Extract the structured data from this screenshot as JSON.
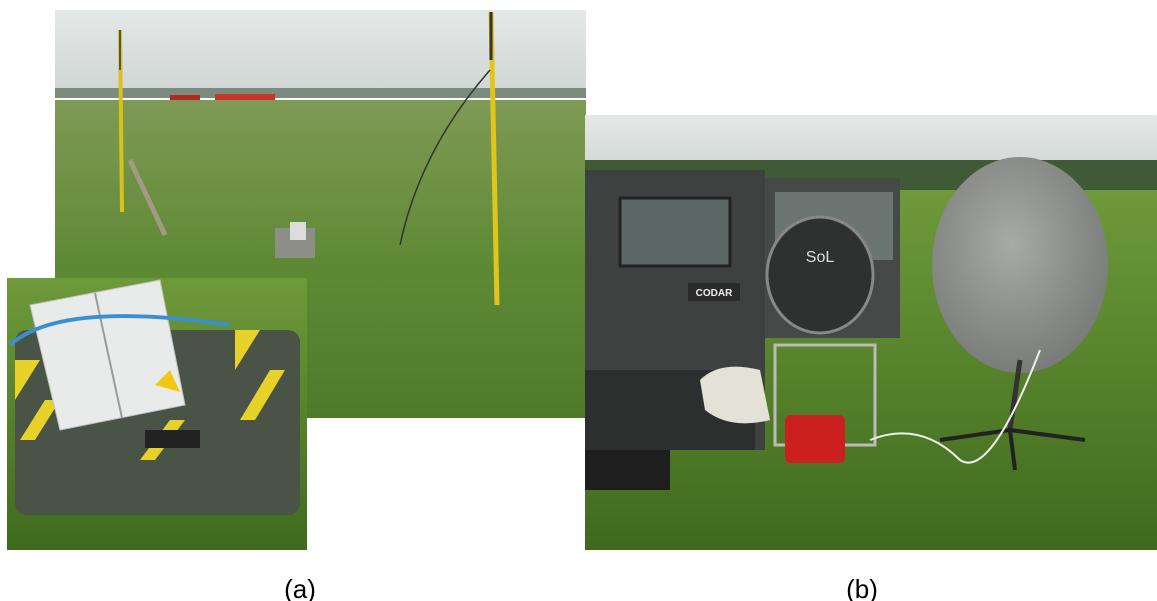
{
  "figure": {
    "panels": [
      {
        "label": "(a)"
      },
      {
        "label": "(b)",
        "texts": [
          "CODAR",
          "SoL"
        ]
      }
    ]
  }
}
